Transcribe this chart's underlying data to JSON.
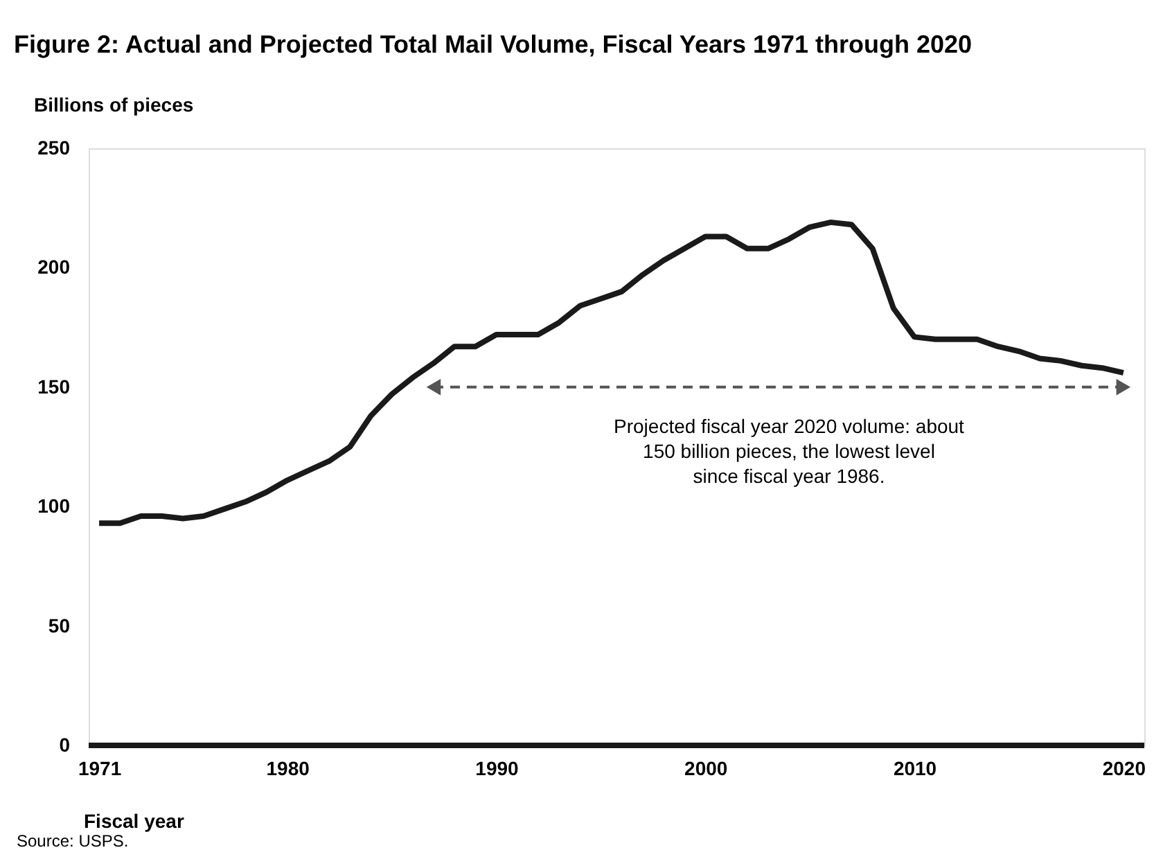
{
  "chart_data": {
    "type": "line",
    "title": "Figure 2: Actual and Projected Total Mail Volume, Fiscal Years 1971 through 2020",
    "xlabel": "Fiscal year",
    "ylabel": "Billions of pieces",
    "xlim": [
      1970.5,
      2021
    ],
    "xticks": [
      1971,
      1980,
      1990,
      2000,
      2010,
      2020
    ],
    "ylim": [
      0,
      250
    ],
    "yticks": [
      0,
      50,
      100,
      150,
      200,
      250
    ],
    "grid": false,
    "series": [
      {
        "color": "#1a1a1a",
        "x": [
          1971,
          1972,
          1973,
          1974,
          1975,
          1976,
          1977,
          1978,
          1979,
          1980,
          1981,
          1982,
          1983,
          1984,
          1985,
          1986,
          1987,
          1988,
          1989,
          1990,
          1991,
          1992,
          1993,
          1994,
          1995,
          1996,
          1997,
          1998,
          1999,
          2000,
          2001,
          2002,
          2003,
          2004,
          2005,
          2006,
          2007,
          2008,
          2009,
          2010,
          2011,
          2012,
          2013,
          2014,
          2015,
          2016,
          2017,
          2018,
          2019,
          2020
        ],
        "values": [
          93,
          93,
          96,
          96,
          95,
          96,
          99,
          102,
          106,
          111,
          115,
          119,
          125,
          138,
          147,
          154,
          160,
          167,
          167,
          172,
          172,
          172,
          177,
          184,
          187,
          190,
          197,
          203,
          208,
          213,
          213,
          208,
          208,
          212,
          217,
          219,
          218,
          208,
          183,
          171,
          170,
          170,
          170,
          167,
          165,
          162,
          161,
          159,
          158,
          156
        ],
        "line_style": "solid"
      },
      {
        "type": "line",
        "color": "#555555",
        "x": [
          1987,
          2020
        ],
        "values": [
          150,
          150
        ],
        "line_style": "dashed",
        "marker": "triangle"
      }
    ],
    "annotations": [
      {
        "text": "Projected fiscal year 2020 volume: about\n150 billion pieces, the lowest level\nsince fiscal year 1986.",
        "x": 2004,
        "y": 150
      },
      "Source: USPS."
    ]
  }
}
